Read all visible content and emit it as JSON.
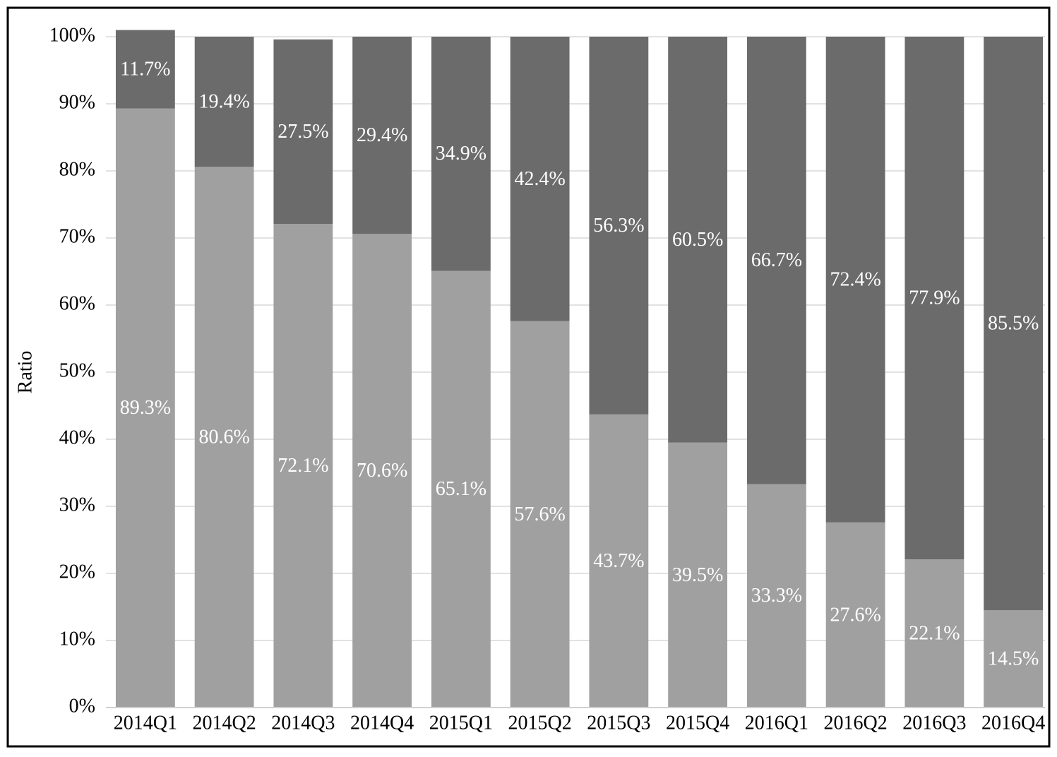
{
  "chart_data": {
    "type": "stacked_bar",
    "y_label": "Ratio",
    "categories": [
      "2014Q1",
      "2014Q2",
      "2014Q3",
      "2014Q4",
      "2015Q1",
      "2015Q2",
      "2015Q3",
      "2015Q4",
      "2016Q1",
      "2016Q2",
      "2016Q3",
      "2016Q4"
    ],
    "series": [
      {
        "color": "#a0a0a0",
        "values": [
          89.3,
          80.6,
          72.1,
          70.6,
          65.1,
          57.6,
          43.7,
          39.5,
          33.3,
          27.6,
          22.1,
          14.5
        ],
        "value_labels": [
          "89.3%",
          "80.6%",
          "72.1%",
          "70.6%",
          "65.1%",
          "57.6%",
          "43.7%",
          "39.5%",
          "33.3%",
          "27.6%",
          "22.1%",
          "14.5%"
        ]
      },
      {
        "color": "#6b6b6b",
        "values": [
          11.7,
          19.4,
          27.5,
          29.4,
          34.9,
          42.4,
          56.3,
          60.5,
          66.7,
          72.4,
          77.9,
          85.5
        ],
        "value_labels": [
          "11.7%",
          "19.4%",
          "27.5%",
          "29.4%",
          "34.9%",
          "42.4%",
          "56.3%",
          "60.5%",
          "66.7%",
          "72.4%",
          "77.9%",
          "85.5%"
        ]
      }
    ],
    "ylim": [
      0,
      100
    ],
    "yticks": [
      {
        "value": 0,
        "label": "0%"
      },
      {
        "value": 10,
        "label": "10%"
      },
      {
        "value": 20,
        "label": "20%"
      },
      {
        "value": 30,
        "label": "30%"
      },
      {
        "value": 40,
        "label": "40%"
      },
      {
        "value": 50,
        "label": "50%"
      },
      {
        "value": 60,
        "label": "60%"
      },
      {
        "value": 70,
        "label": "70%"
      },
      {
        "value": 80,
        "label": "80%"
      },
      {
        "value": 90,
        "label": "90%"
      },
      {
        "value": 100,
        "label": "100%"
      }
    ],
    "grid": true
  }
}
